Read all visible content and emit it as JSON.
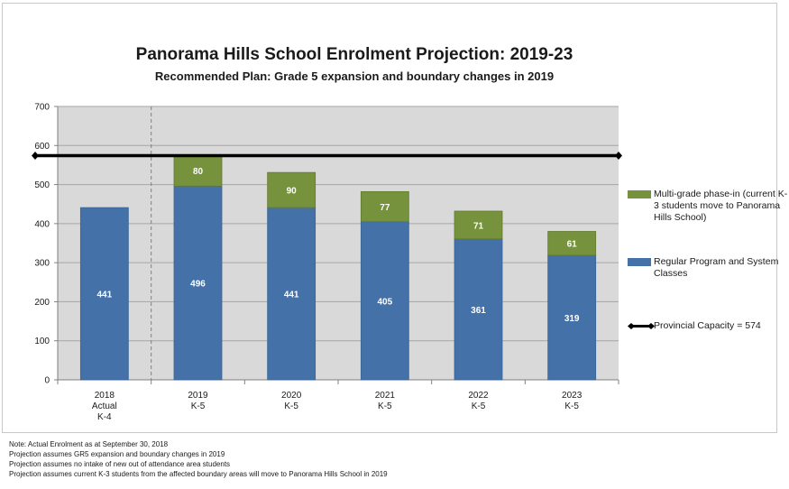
{
  "chart_data": {
    "type": "bar",
    "stacked": true,
    "title": "Panorama Hills School Enrolment Projection: 2019-23",
    "subtitle": "Recommended Plan: Grade 5 expansion and boundary changes in 2019",
    "categories": [
      [
        "2018",
        "Actual",
        "K-4"
      ],
      [
        "2019",
        "K-5"
      ],
      [
        "2020",
        "K-5"
      ],
      [
        "2021",
        "K-5"
      ],
      [
        "2022",
        "K-5"
      ],
      [
        "2023",
        "K-5"
      ]
    ],
    "series": [
      {
        "name": "Regular Program and System Classes",
        "color": "#4472a8",
        "values": [
          441,
          496,
          441,
          405,
          361,
          319
        ]
      },
      {
        "name": "Multi-grade phase-in (current K-3 students move to Panorama Hills School)",
        "color": "#76923c",
        "values": [
          null,
          80,
          90,
          77,
          71,
          61
        ]
      }
    ],
    "reference_line": {
      "name": "Provincial Capacity = 574",
      "value": 574,
      "color": "#000000"
    },
    "ylim": [
      0,
      700
    ],
    "yticks": [
      0,
      100,
      200,
      300,
      400,
      500,
      600,
      700
    ],
    "grid": "horizontal",
    "legend": "right",
    "plot_background": "#d9d9d9",
    "separator_after_category": 0
  },
  "notes": [
    "Note: Actual Enrolment as at September 30, 2018",
    "Projection assumes GR5 expansion and boundary changes in 2019",
    "Projection assumes no intake of new out of attendance area students",
    "Projection assumes current K-3 students from the affected boundary areas will move to Panorama Hills School in 2019"
  ]
}
